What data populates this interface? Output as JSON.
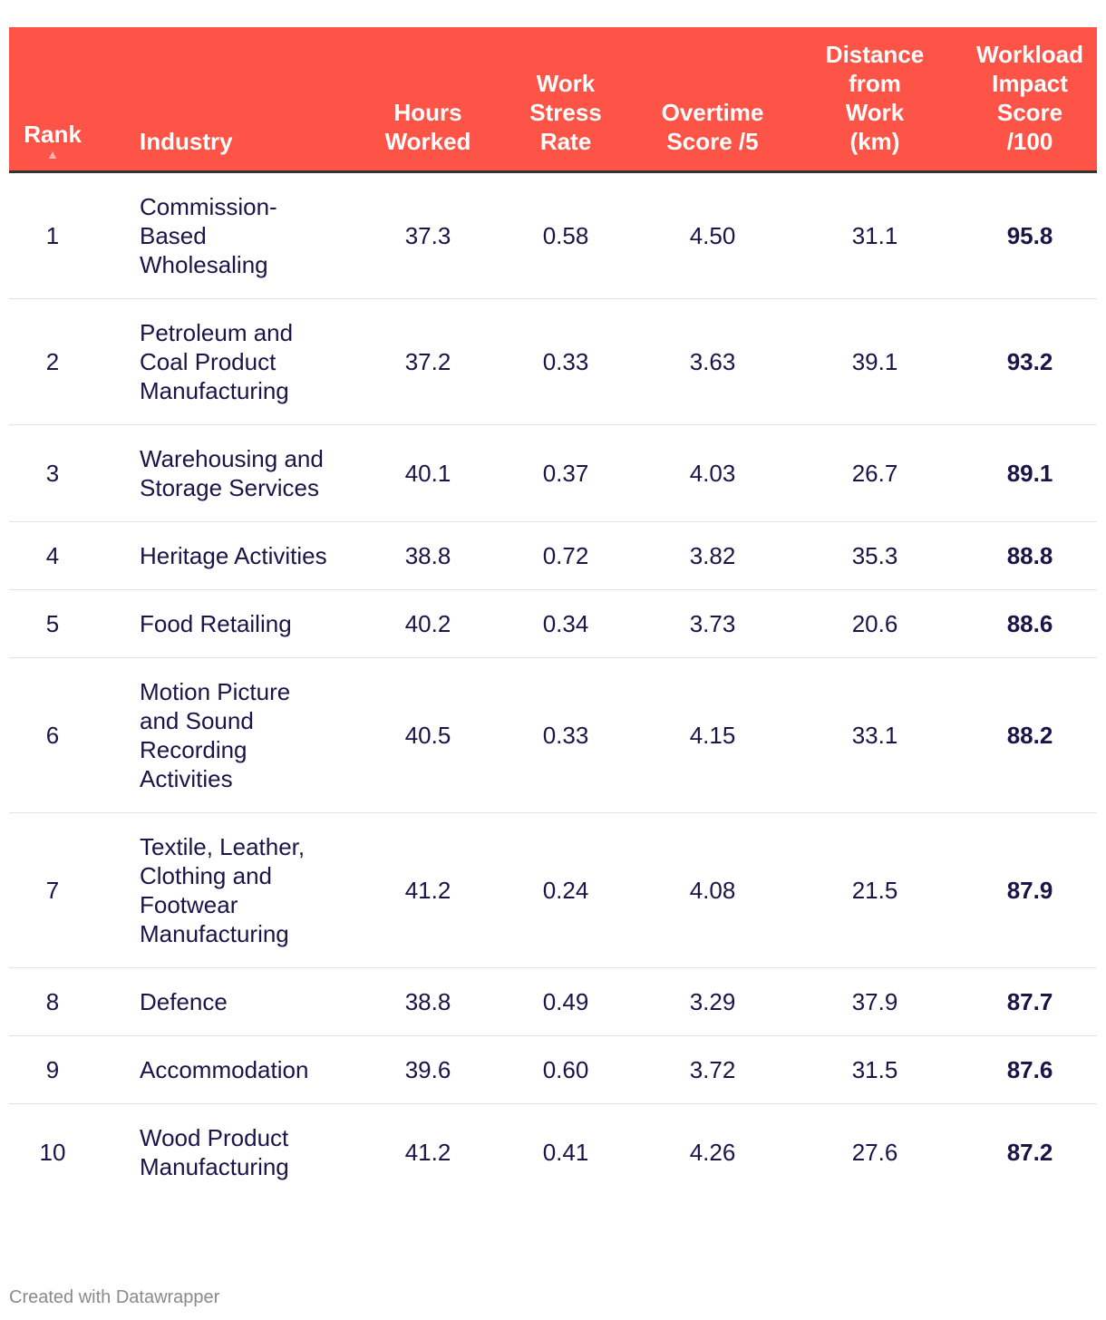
{
  "table": {
    "columns": [
      "Rank",
      "Industry",
      "Hours Worked",
      "Work Stress Rate",
      "Overtime Score /5",
      "Distance from Work (km)",
      "Workload Impact Score /100"
    ],
    "rows": [
      [
        "1",
        "Commission-Based Wholesaling",
        "37.3",
        "0.58",
        "4.50",
        "31.1",
        "95.8"
      ],
      [
        "2",
        "Petroleum and Coal Product Manufacturing",
        "37.2",
        "0.33",
        "3.63",
        "39.1",
        "93.2"
      ],
      [
        "3",
        "Warehousing and Storage Services",
        "40.1",
        "0.37",
        "4.03",
        "26.7",
        "89.1"
      ],
      [
        "4",
        "Heritage Activities",
        "38.8",
        "0.72",
        "3.82",
        "35.3",
        "88.8"
      ],
      [
        "5",
        "Food Retailing",
        "40.2",
        "0.34",
        "3.73",
        "20.6",
        "88.6"
      ],
      [
        "6",
        "Motion Picture and Sound Recording Activities",
        "40.5",
        "0.33",
        "4.15",
        "33.1",
        "88.2"
      ],
      [
        "7",
        "Textile, Leather, Clothing and Footwear Manufacturing",
        "41.2",
        "0.24",
        "4.08",
        "21.5",
        "87.9"
      ],
      [
        "8",
        "Defence",
        "38.8",
        "0.49",
        "3.29",
        "37.9",
        "87.7"
      ],
      [
        "9",
        "Accommodation",
        "39.6",
        "0.60",
        "3.72",
        "31.5",
        "87.6"
      ],
      [
        "10",
        "Wood Product Manufacturing",
        "41.2",
        "0.41",
        "4.26",
        "27.6",
        "87.2"
      ]
    ]
  },
  "footer": "Created with Datawrapper"
}
